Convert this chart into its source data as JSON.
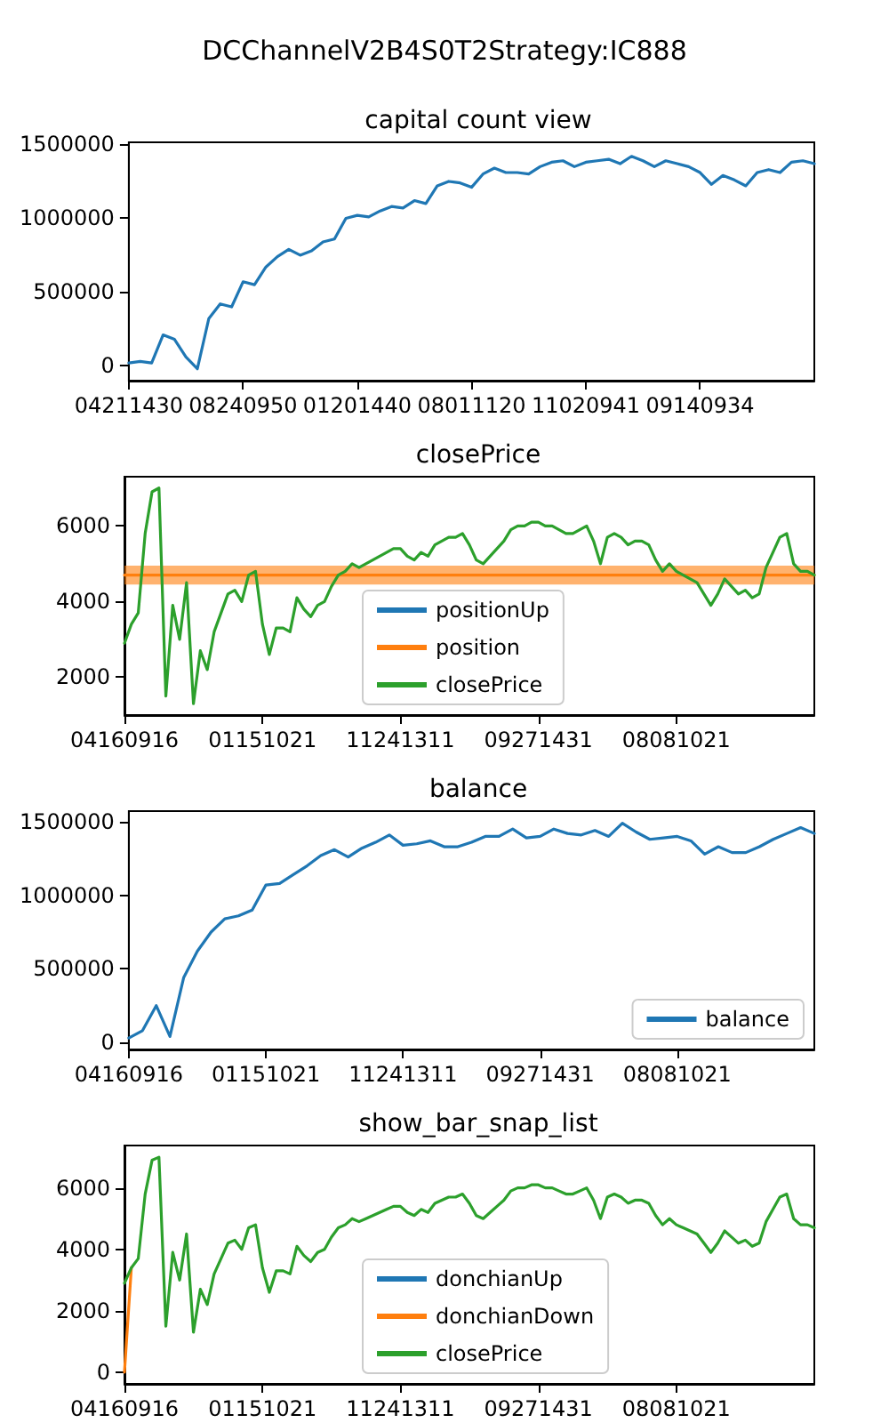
{
  "chart_data": [
    {
      "type": "line",
      "title": "DCChannelV2B4S0T2Strategy:IC888",
      "subtitle": "capital count view",
      "marker": "none",
      "categories": [
        "04211430",
        null,
        null,
        null,
        null,
        null,
        null,
        null,
        null,
        null,
        "08240950",
        null,
        null,
        null,
        null,
        null,
        null,
        null,
        null,
        null,
        "01201440",
        null,
        null,
        null,
        null,
        null,
        null,
        null,
        null,
        null,
        "08011120",
        null,
        null,
        null,
        null,
        null,
        null,
        null,
        null,
        null,
        "11020941",
        null,
        null,
        null,
        null,
        null,
        null,
        null,
        null,
        null,
        "09140934",
        null,
        null,
        null,
        null,
        null,
        null,
        null,
        null,
        null,
        null
      ],
      "ylim": [
        -100000,
        1515000
      ],
      "yticks": [
        0,
        500000,
        1000000,
        1500000
      ],
      "series": [
        {
          "color": "#1f77b4",
          "values": [
            20000,
            30000,
            20000,
            210000,
            180000,
            60000,
            -20000,
            320000,
            420000,
            400000,
            570000,
            550000,
            670000,
            740000,
            790000,
            750000,
            780000,
            840000,
            860000,
            1000000,
            1020000,
            1010000,
            1050000,
            1080000,
            1070000,
            1120000,
            1100000,
            1220000,
            1250000,
            1240000,
            1210000,
            1300000,
            1340000,
            1310000,
            1310000,
            1300000,
            1350000,
            1380000,
            1390000,
            1350000,
            1380000,
            1390000,
            1400000,
            1370000,
            1420000,
            1390000,
            1350000,
            1390000,
            1370000,
            1350000,
            1310000,
            1230000,
            1290000,
            1260000,
            1220000,
            1310000,
            1330000,
            1310000,
            1380000,
            1390000,
            1370000
          ]
        }
      ]
    },
    {
      "type": "line",
      "title": "closePrice",
      "marker": "none",
      "legend": "bottom",
      "categories": [
        "04160916",
        null,
        null,
        null,
        null,
        null,
        null,
        null,
        null,
        null,
        null,
        null,
        null,
        null,
        null,
        null,
        null,
        null,
        null,
        null,
        "01151021",
        null,
        null,
        null,
        null,
        null,
        null,
        null,
        null,
        null,
        null,
        null,
        null,
        null,
        null,
        null,
        null,
        null,
        null,
        null,
        "11241311",
        null,
        null,
        null,
        null,
        null,
        null,
        null,
        null,
        null,
        null,
        null,
        null,
        null,
        null,
        null,
        null,
        null,
        null,
        null,
        "09271431",
        null,
        null,
        null,
        null,
        null,
        null,
        null,
        null,
        null,
        null,
        null,
        null,
        null,
        null,
        null,
        null,
        null,
        null,
        null,
        "08081021",
        null,
        null,
        null,
        null,
        null,
        null,
        null,
        null,
        null,
        null,
        null,
        null,
        null,
        null,
        null,
        null,
        null,
        null,
        null,
        null
      ],
      "ylim": [
        1000,
        7300
      ],
      "yticks": [
        2000,
        4000,
        6000
      ],
      "series": [
        {
          "name": "positionUp",
          "color": "#1f77b4",
          "values": [
            null,
            null,
            null,
            null,
            null,
            null,
            null,
            null,
            null,
            null,
            null,
            null,
            null,
            null,
            null,
            null,
            null,
            null,
            null,
            null,
            null,
            null,
            null,
            null,
            null,
            null,
            null,
            null,
            null,
            null,
            null,
            null,
            null,
            null,
            null,
            null,
            null,
            null,
            null,
            null,
            null,
            null,
            null,
            null,
            null,
            null,
            null,
            null,
            null,
            null,
            null,
            null,
            null,
            null,
            null,
            null,
            null,
            null,
            null,
            null,
            null,
            null,
            null,
            null,
            null,
            null,
            null,
            null,
            null,
            null,
            null,
            null,
            null,
            null,
            null,
            null,
            null,
            null,
            null,
            null,
            null,
            null,
            null,
            null,
            null,
            null,
            null,
            null,
            null,
            null,
            null,
            null,
            null,
            null,
            null,
            null,
            null,
            null,
            null,
            null,
            null
          ]
        },
        {
          "name": "position",
          "color": "#ff7f0e",
          "values": [
            4700,
            4700,
            4700,
            4700,
            4700,
            4700,
            4700,
            4700,
            4700,
            4700,
            4700,
            4700,
            4700,
            4700,
            4700,
            4700,
            4700,
            4700,
            4700,
            4700,
            4700,
            4700,
            4700,
            4700,
            4700,
            4700,
            4700,
            4700,
            4700,
            4700,
            4700,
            4700,
            4700,
            4700,
            4700,
            4700,
            4700,
            4700,
            4700,
            4700,
            4700,
            4700,
            4700,
            4700,
            4700,
            4700,
            4700,
            4700,
            4700,
            4700,
            4700,
            4700,
            4700,
            4700,
            4700,
            4700,
            4700,
            4700,
            4700,
            4700,
            4700,
            4700,
            4700,
            4700,
            4700,
            4700,
            4700,
            4700,
            4700,
            4700,
            4700,
            4700,
            4700,
            4700,
            4700,
            4700,
            4700,
            4700,
            4700,
            4700,
            4700,
            4700,
            4700,
            4700,
            4700,
            4700,
            4700,
            4700,
            4700,
            4700,
            4700,
            4700,
            4700,
            4700,
            4700,
            4700,
            4700,
            4700,
            4700,
            4700,
            4700
          ],
          "lower": [
            4450,
            4450,
            4450,
            4450,
            4450,
            4450,
            4450,
            4450,
            4450,
            4450,
            4450,
            4450,
            4450,
            4450,
            4450,
            4450,
            4450,
            4450,
            4450,
            4450,
            4450,
            4450,
            4450,
            4450,
            4450,
            4450,
            4450,
            4450,
            4450,
            4450,
            4450,
            4450,
            4450,
            4450,
            4450,
            4450,
            4450,
            4450,
            4450,
            4450,
            4450,
            4450,
            4450,
            4450,
            4450,
            4450,
            4450,
            4450,
            4450,
            4450,
            4450,
            4450,
            4450,
            4450,
            4450,
            4450,
            4450,
            4450,
            4450,
            4450,
            4450,
            4450,
            4450,
            4450,
            4450,
            4450,
            4450,
            4450,
            4450,
            4450,
            4450,
            4450,
            4450,
            4450,
            4450,
            4450,
            4450,
            4450,
            4450,
            4450,
            4450,
            4450,
            4450,
            4450,
            4450,
            4450,
            4450,
            4450,
            4450,
            4450,
            4450,
            4450,
            4450,
            4450,
            4450,
            4450,
            4450,
            4450,
            4450,
            4450,
            4450
          ],
          "upper": [
            4950,
            4950,
            4950,
            4950,
            4950,
            4950,
            4950,
            4950,
            4950,
            4950,
            4950,
            4950,
            4950,
            4950,
            4950,
            4950,
            4950,
            4950,
            4950,
            4950,
            4950,
            4950,
            4950,
            4950,
            4950,
            4950,
            4950,
            4950,
            4950,
            4950,
            4950,
            4950,
            4950,
            4950,
            4950,
            4950,
            4950,
            4950,
            4950,
            4950,
            4950,
            4950,
            4950,
            4950,
            4950,
            4950,
            4950,
            4950,
            4950,
            4950,
            4950,
            4950,
            4950,
            4950,
            4950,
            4950,
            4950,
            4950,
            4950,
            4950,
            4950,
            4950,
            4950,
            4950,
            4950,
            4950,
            4950,
            4950,
            4950,
            4950,
            4950,
            4950,
            4950,
            4950,
            4950,
            4950,
            4950,
            4950,
            4950,
            4950,
            4950,
            4950,
            4950,
            4950,
            4950,
            4950,
            4950,
            4950,
            4950,
            4950,
            4950,
            4950,
            4950,
            4950,
            4950,
            4950,
            4950,
            4950,
            4950,
            4950,
            4950
          ]
        },
        {
          "name": "closePrice",
          "color": "#2ca02c",
          "values": [
            2900,
            3400,
            3700,
            5800,
            6900,
            7000,
            1500,
            3900,
            3000,
            4500,
            1300,
            2700,
            2200,
            3200,
            3700,
            4200,
            4300,
            4000,
            4700,
            4800,
            3400,
            2600,
            3300,
            3300,
            3200,
            4100,
            3800,
            3600,
            3900,
            4000,
            4400,
            4700,
            4800,
            5000,
            4900,
            5000,
            5100,
            5200,
            5300,
            5400,
            5400,
            5200,
            5100,
            5300,
            5200,
            5500,
            5600,
            5700,
            5700,
            5800,
            5500,
            5100,
            5000,
            5200,
            5400,
            5600,
            5900,
            6000,
            6000,
            6100,
            6100,
            6000,
            6000,
            5900,
            5800,
            5800,
            5900,
            6000,
            5600,
            5000,
            5700,
            5800,
            5700,
            5500,
            5600,
            5600,
            5500,
            5100,
            4800,
            5000,
            4800,
            4700,
            4600,
            4500,
            4200,
            3900,
            4200,
            4600,
            4400,
            4200,
            4300,
            4100,
            4200,
            4900,
            5300,
            5700,
            5800,
            5000,
            4800,
            4800,
            4700
          ]
        }
      ]
    },
    {
      "type": "line",
      "title": "balance",
      "marker": "none",
      "legend": "bottom right",
      "categories": [
        "04160916",
        null,
        null,
        null,
        null,
        null,
        null,
        null,
        null,
        null,
        "01151021",
        null,
        null,
        null,
        null,
        null,
        null,
        null,
        null,
        null,
        "11241311",
        null,
        null,
        null,
        null,
        null,
        null,
        null,
        null,
        null,
        "09271431",
        null,
        null,
        null,
        null,
        null,
        null,
        null,
        null,
        null,
        "08081021",
        null,
        null,
        null,
        null,
        null,
        null,
        null,
        null,
        null,
        null
      ],
      "ylim": [
        -48000,
        1572000
      ],
      "yticks": [
        0,
        500000,
        1000000,
        1500000
      ],
      "series": [
        {
          "name": "balance",
          "color": "#1f77b4",
          "values": [
            30000,
            80000,
            250000,
            40000,
            440000,
            620000,
            750000,
            840000,
            860000,
            900000,
            1070000,
            1080000,
            1140000,
            1200000,
            1270000,
            1310000,
            1260000,
            1320000,
            1360000,
            1410000,
            1340000,
            1350000,
            1370000,
            1330000,
            1330000,
            1360000,
            1400000,
            1400000,
            1450000,
            1390000,
            1400000,
            1450000,
            1420000,
            1410000,
            1440000,
            1400000,
            1490000,
            1430000,
            1380000,
            1390000,
            1400000,
            1370000,
            1280000,
            1330000,
            1290000,
            1290000,
            1330000,
            1380000,
            1420000,
            1460000,
            1420000
          ]
        }
      ]
    },
    {
      "type": "line",
      "title": "show_bar_snap_list",
      "marker": "none",
      "legend": "bottom",
      "categories": [
        "04160916",
        null,
        null,
        null,
        null,
        null,
        null,
        null,
        null,
        null,
        null,
        null,
        null,
        null,
        null,
        null,
        null,
        null,
        null,
        null,
        "01151021",
        null,
        null,
        null,
        null,
        null,
        null,
        null,
        null,
        null,
        null,
        null,
        null,
        null,
        null,
        null,
        null,
        null,
        null,
        null,
        "11241311",
        null,
        null,
        null,
        null,
        null,
        null,
        null,
        null,
        null,
        null,
        null,
        null,
        null,
        null,
        null,
        null,
        null,
        null,
        null,
        "09271431",
        null,
        null,
        null,
        null,
        null,
        null,
        null,
        null,
        null,
        null,
        null,
        null,
        null,
        null,
        null,
        null,
        null,
        null,
        null,
        "08081021",
        null,
        null,
        null,
        null,
        null,
        null,
        null,
        null,
        null,
        null,
        null,
        null,
        null,
        null,
        null,
        null,
        null,
        null,
        null,
        null
      ],
      "ylim": [
        -380,
        7380
      ],
      "yticks": [
        0,
        2000,
        4000,
        6000
      ],
      "series": [
        {
          "name": "donchianUp",
          "color": "#1f77b4",
          "values": [
            null,
            null,
            null,
            null,
            null,
            null,
            null,
            null,
            null,
            null,
            null,
            null,
            null,
            null,
            null,
            null,
            null,
            null,
            null,
            null,
            null,
            null,
            null,
            null,
            null,
            null,
            null,
            null,
            null,
            null,
            null,
            null,
            null,
            null,
            null,
            null,
            null,
            null,
            null,
            null,
            null,
            null,
            null,
            null,
            null,
            null,
            null,
            null,
            null,
            null,
            null,
            null,
            null,
            null,
            null,
            null,
            null,
            null,
            null,
            null,
            null,
            null,
            null,
            null,
            null,
            null,
            null,
            null,
            null,
            null,
            null,
            null,
            null,
            null,
            null,
            null,
            null,
            null,
            null,
            null,
            null,
            null,
            null,
            null,
            null,
            null,
            null,
            null,
            null,
            null,
            null,
            null,
            null,
            null,
            null,
            null,
            null,
            null,
            null,
            null,
            null
          ]
        },
        {
          "name": "donchianDown",
          "color": "#ff7f0e",
          "values": [
            0,
            3400,
            null,
            null,
            null,
            null,
            null,
            null,
            null,
            null,
            null,
            null,
            null,
            null,
            null,
            null,
            null,
            null,
            null,
            null,
            null,
            null,
            null,
            null,
            null,
            null,
            null,
            null,
            null,
            null,
            null,
            null,
            null,
            null,
            null,
            null,
            null,
            null,
            null,
            null,
            null,
            null,
            null,
            null,
            null,
            null,
            null,
            null,
            null,
            null,
            null,
            null,
            null,
            null,
            null,
            null,
            null,
            null,
            null,
            null,
            null,
            null,
            null,
            null,
            null,
            null,
            null,
            null,
            null,
            null,
            null,
            null,
            null,
            null,
            null,
            null,
            null,
            null,
            null,
            null,
            null,
            null,
            null,
            null,
            null,
            null,
            null,
            null,
            null,
            null,
            null,
            null,
            null,
            null,
            null,
            null,
            null,
            null,
            null,
            null,
            null
          ]
        },
        {
          "name": "closePrice",
          "color": "#2ca02c",
          "values": [
            2900,
            3400,
            3700,
            5800,
            6900,
            7000,
            1500,
            3900,
            3000,
            4500,
            1300,
            2700,
            2200,
            3200,
            3700,
            4200,
            4300,
            4000,
            4700,
            4800,
            3400,
            2600,
            3300,
            3300,
            3200,
            4100,
            3800,
            3600,
            3900,
            4000,
            4400,
            4700,
            4800,
            5000,
            4900,
            5000,
            5100,
            5200,
            5300,
            5400,
            5400,
            5200,
            5100,
            5300,
            5200,
            5500,
            5600,
            5700,
            5700,
            5800,
            5500,
            5100,
            5000,
            5200,
            5400,
            5600,
            5900,
            6000,
            6000,
            6100,
            6100,
            6000,
            6000,
            5900,
            5800,
            5800,
            5900,
            6000,
            5600,
            5000,
            5700,
            5800,
            5700,
            5500,
            5600,
            5600,
            5500,
            5100,
            4800,
            5000,
            4800,
            4700,
            4600,
            4500,
            4200,
            3900,
            4200,
            4600,
            4400,
            4200,
            4300,
            4100,
            4200,
            4900,
            5300,
            5700,
            5800,
            5000,
            4800,
            4800,
            4700
          ]
        }
      ]
    }
  ]
}
